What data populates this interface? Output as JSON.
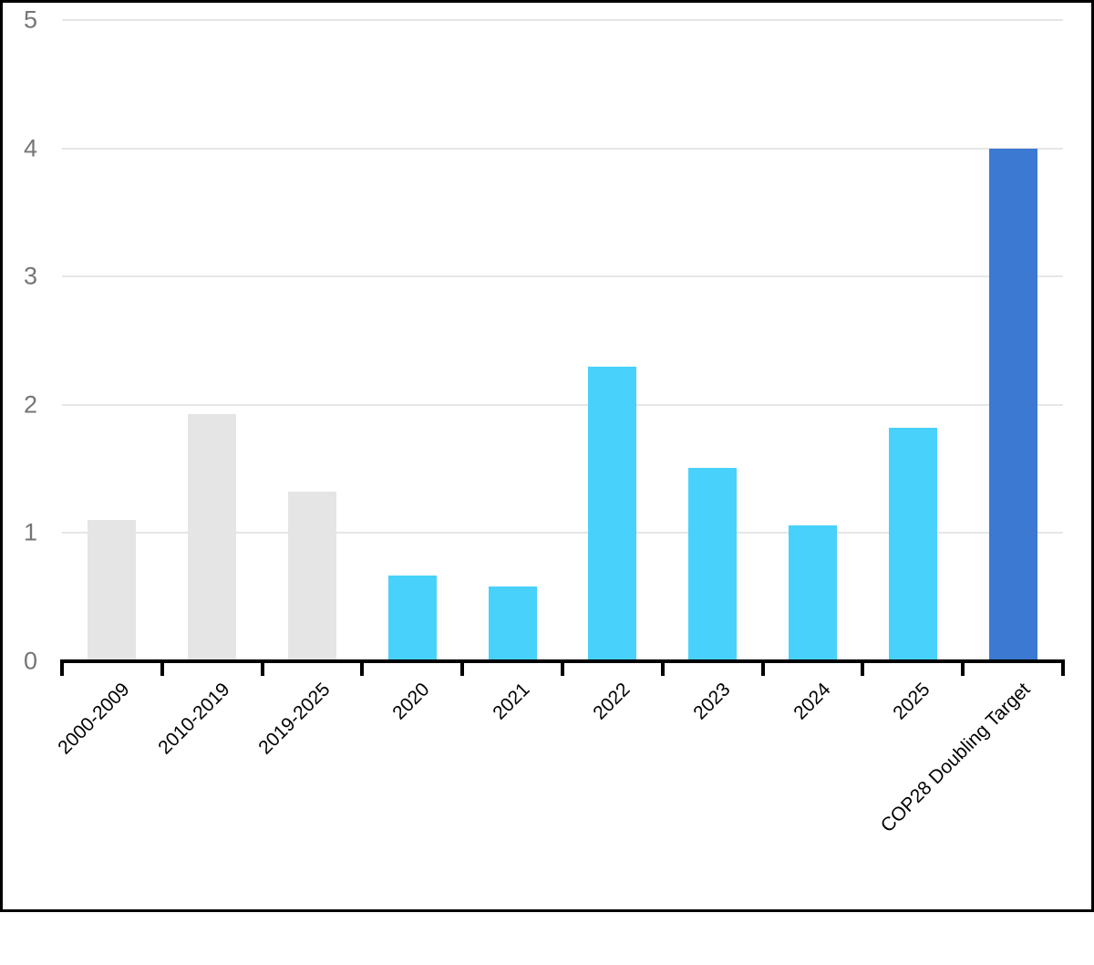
{
  "chart_data": {
    "type": "bar",
    "title": "",
    "xlabel": "",
    "ylabel": "",
    "categories": [
      "2000-2009",
      "2010-2019",
      "2019-2025",
      "2020",
      "2021",
      "2022",
      "2023",
      "2024",
      "2025",
      "COP28 Doubling Target"
    ],
    "values": [
      1.1,
      1.93,
      1.32,
      0.67,
      0.58,
      2.3,
      1.51,
      1.06,
      1.82,
      4.0
    ],
    "bar_colors": [
      "#e5e5e5",
      "#e5e5e5",
      "#e5e5e5",
      "#48d1fb",
      "#48d1fb",
      "#48d1fb",
      "#48d1fb",
      "#48d1fb",
      "#48d1fb",
      "#3c79d2"
    ],
    "ylim": [
      0,
      5
    ],
    "yticks": [
      0,
      1,
      2,
      3,
      4,
      5
    ],
    "grid": true,
    "legend": false,
    "colors": {
      "historical_bar": "#e5e5e5",
      "annual_bar": "#48d1fb",
      "target_bar": "#3c79d2",
      "gridline": "#e6e6e6",
      "axis": "#000000",
      "y_tick_label": "#757575",
      "x_tick_label": "#000000",
      "background": "#ffffff",
      "frame_border": "#000000"
    }
  }
}
